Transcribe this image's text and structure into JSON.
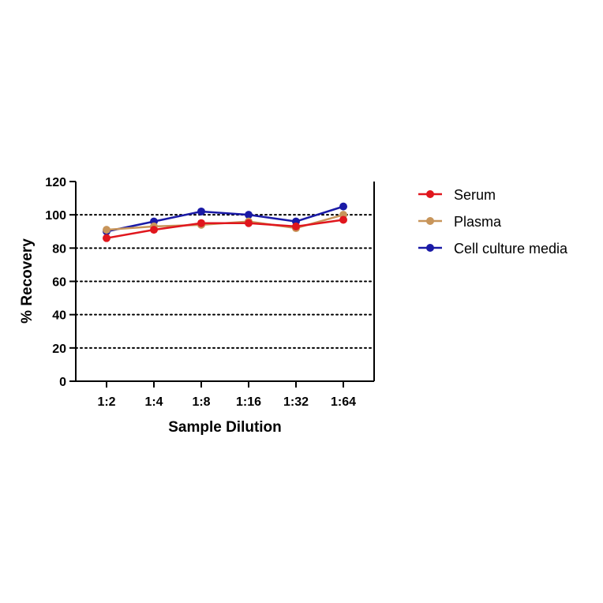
{
  "chart_data": {
    "type": "line",
    "xlabel": "Sample Dilution",
    "ylabel": "% Recovery",
    "ylim": [
      0,
      120
    ],
    "yticks": [
      0,
      20,
      40,
      60,
      80,
      100,
      120
    ],
    "grid": "horizontal dotted",
    "categories": [
      "1:2",
      "1:4",
      "1:8",
      "1:16",
      "1:32",
      "1:64"
    ],
    "legend_position": "right",
    "series": [
      {
        "name": "Cell culture media",
        "color": "#1a1aa6",
        "values": [
          90,
          96,
          102,
          100,
          96,
          105
        ]
      },
      {
        "name": "Plasma",
        "color": "#c8955a",
        "values": [
          91,
          93,
          94,
          96,
          92,
          100
        ]
      },
      {
        "name": "Serum",
        "color": "#e0161d",
        "values": [
          86,
          91,
          95,
          95,
          93,
          97
        ]
      }
    ],
    "legend_order": [
      "Serum",
      "Plasma",
      "Cell culture media"
    ]
  }
}
